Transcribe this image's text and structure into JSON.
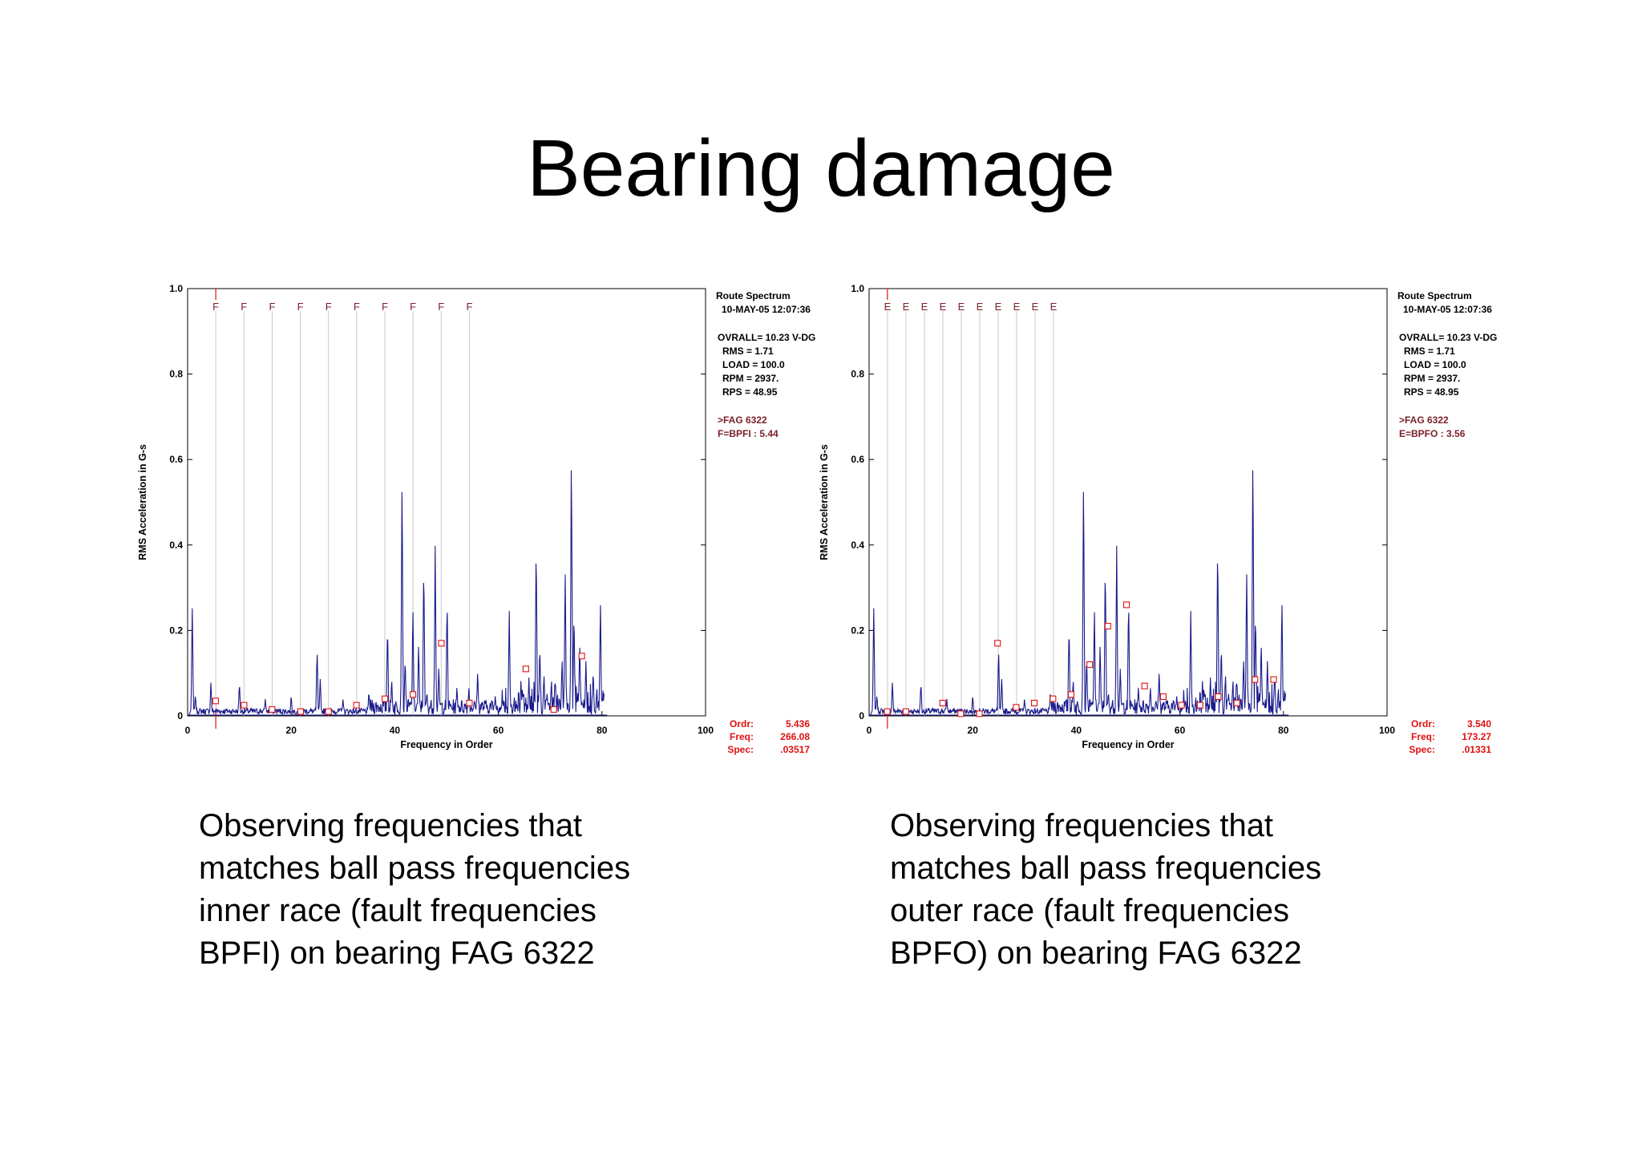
{
  "title": "Bearing damage",
  "colors": {
    "trace": "#1a1a8c",
    "fault": "#7a1f2a",
    "cursor": "#e01010",
    "grid": "#c8c8c8"
  },
  "chart_data": [
    {
      "type": "line",
      "title": "",
      "xlabel": "Frequency in Order",
      "ylabel": "RMS Acceleration in G-s",
      "xlim": [
        0,
        100
      ],
      "ylim": [
        0,
        1.0
      ],
      "xticks": [
        "0",
        "20",
        "40",
        "60",
        "80",
        "100"
      ],
      "yticks": [
        "0",
        "0.2",
        "0.4",
        "0.6",
        "0.8",
        "1.0"
      ],
      "fault_letter": "F",
      "fault_spacing": 5.44,
      "fault_count": 10,
      "cursor_x": 5.436,
      "info": {
        "header1": "Route Spectrum",
        "header2": "10-MAY-05  12:07:36",
        "overall": "OVRALL=  10.23 V-DG",
        "rms": "RMS =  1.71",
        "load": "LOAD = 100.0",
        "rpm": "RPM =  2937.",
        "rps": "RPS =  48.95",
        "bearing": ">FAG 6322",
        "fault_def": "F=BPFI    :  5.44",
        "ordr_label": "Ordr:",
        "ordr_value": "5.436",
        "freq_label": "Freq:",
        "freq_value": "266.08",
        "spec_label": "Spec:",
        "spec_value": ".03517"
      },
      "peaks": [
        [
          0.9,
          0.26
        ],
        [
          1.5,
          0.05
        ],
        [
          4.5,
          0.08
        ],
        [
          10,
          0.08
        ],
        [
          15,
          0.04
        ],
        [
          20,
          0.05
        ],
        [
          25,
          0.16
        ],
        [
          25.6,
          0.09
        ],
        [
          30,
          0.04
        ],
        [
          35,
          0.06
        ],
        [
          38.6,
          0.22
        ],
        [
          39.4,
          0.09
        ],
        [
          41.4,
          0.58
        ],
        [
          42,
          0.14
        ],
        [
          43.5,
          0.26
        ],
        [
          44.6,
          0.17
        ],
        [
          45.6,
          0.37
        ],
        [
          46.2,
          0.06
        ],
        [
          47.8,
          0.4
        ],
        [
          48.5,
          0.12
        ],
        [
          50.1,
          0.28
        ],
        [
          52,
          0.07
        ],
        [
          54.3,
          0.07
        ],
        [
          56,
          0.11
        ],
        [
          59.4,
          0.05
        ],
        [
          62.1,
          0.25
        ],
        [
          64.4,
          0.07
        ],
        [
          65.9,
          0.09
        ],
        [
          67.3,
          0.42
        ],
        [
          68,
          0.17
        ],
        [
          68.8,
          0.1
        ],
        [
          70.2,
          0.07
        ],
        [
          71,
          0.09
        ],
        [
          72.3,
          0.14
        ],
        [
          72.9,
          0.34
        ],
        [
          74.1,
          0.64
        ],
        [
          74.6,
          0.25
        ],
        [
          75.7,
          0.18
        ],
        [
          76.9,
          0.13
        ],
        [
          78.3,
          0.11
        ],
        [
          79.7,
          0.28
        ],
        [
          80.2,
          0.06
        ]
      ],
      "points": [
        [
          5.4,
          0.035
        ],
        [
          10.9,
          0.025
        ],
        [
          16.3,
          0.015
        ],
        [
          21.8,
          0.01
        ],
        [
          27.2,
          0.01
        ],
        [
          32.6,
          0.025
        ],
        [
          38.1,
          0.04
        ],
        [
          43.5,
          0.05
        ],
        [
          49,
          0.17
        ],
        [
          54.4,
          0.03
        ],
        [
          65.3,
          0.11
        ],
        [
          70.7,
          0.015
        ],
        [
          76.1,
          0.14
        ]
      ]
    },
    {
      "type": "line",
      "title": "",
      "xlabel": "Frequency in Order",
      "ylabel": "RMS Acceleration in G-s",
      "xlim": [
        0,
        100
      ],
      "ylim": [
        0,
        1.0
      ],
      "xticks": [
        "0",
        "20",
        "40",
        "60",
        "80",
        "100"
      ],
      "yticks": [
        "0",
        "0.2",
        "0.4",
        "0.6",
        "0.8",
        "1.0"
      ],
      "fault_letter": "E",
      "fault_spacing": 3.56,
      "fault_count": 10,
      "cursor_x": 3.54,
      "info": {
        "header1": "Route Spectrum",
        "header2": "10-MAY-05  12:07:36",
        "overall": "OVRALL=  10.23 V-DG",
        "rms": "RMS =  1.71",
        "load": "LOAD = 100.0",
        "rpm": "RPM =  2937.",
        "rps": "RPS =  48.95",
        "bearing": ">FAG 6322",
        "fault_def": "E=BPFO    :  3.56",
        "ordr_label": "Ordr:",
        "ordr_value": "3.540",
        "freq_label": "Freq:",
        "freq_value": "173.27",
        "spec_label": "Spec:",
        "spec_value": ".01331"
      },
      "peaks": [
        [
          0.9,
          0.26
        ],
        [
          1.5,
          0.05
        ],
        [
          4.5,
          0.08
        ],
        [
          10,
          0.08
        ],
        [
          15,
          0.04
        ],
        [
          20,
          0.05
        ],
        [
          25,
          0.16
        ],
        [
          25.6,
          0.09
        ],
        [
          30,
          0.04
        ],
        [
          35,
          0.06
        ],
        [
          38.6,
          0.22
        ],
        [
          39.4,
          0.09
        ],
        [
          41.4,
          0.58
        ],
        [
          42,
          0.14
        ],
        [
          43.5,
          0.26
        ],
        [
          44.6,
          0.17
        ],
        [
          45.6,
          0.37
        ],
        [
          46.2,
          0.06
        ],
        [
          47.8,
          0.4
        ],
        [
          48.5,
          0.12
        ],
        [
          50.1,
          0.28
        ],
        [
          52,
          0.07
        ],
        [
          54.3,
          0.07
        ],
        [
          56,
          0.11
        ],
        [
          59.4,
          0.05
        ],
        [
          62.1,
          0.25
        ],
        [
          64.4,
          0.07
        ],
        [
          65.9,
          0.09
        ],
        [
          67.3,
          0.42
        ],
        [
          68,
          0.17
        ],
        [
          68.8,
          0.1
        ],
        [
          70.2,
          0.07
        ],
        [
          71,
          0.09
        ],
        [
          72.3,
          0.14
        ],
        [
          72.9,
          0.34
        ],
        [
          74.1,
          0.64
        ],
        [
          74.6,
          0.25
        ],
        [
          75.7,
          0.18
        ],
        [
          76.9,
          0.13
        ],
        [
          78.3,
          0.11
        ],
        [
          79.7,
          0.28
        ],
        [
          80.2,
          0.06
        ]
      ],
      "points": [
        [
          3.5,
          0.01
        ],
        [
          7.1,
          0.01
        ],
        [
          14.2,
          0.03
        ],
        [
          17.7,
          0.005
        ],
        [
          21.3,
          0.005
        ],
        [
          24.8,
          0.17
        ],
        [
          28.4,
          0.02
        ],
        [
          31.9,
          0.03
        ],
        [
          35.5,
          0.04
        ],
        [
          39,
          0.05
        ],
        [
          42.6,
          0.12
        ],
        [
          46.1,
          0.21
        ],
        [
          49.7,
          0.26
        ],
        [
          53.2,
          0.07
        ],
        [
          56.8,
          0.045
        ],
        [
          60.3,
          0.025
        ],
        [
          63.9,
          0.025
        ],
        [
          67.4,
          0.045
        ],
        [
          71,
          0.03
        ],
        [
          74.5,
          0.085
        ],
        [
          78.1,
          0.085
        ]
      ]
    }
  ],
  "captions": [
    {
      "lines": [
        "Observing frequencies that",
        "matches ball pass frequencies",
        "inner race (fault frequencies",
        "BPFI) on bearing FAG 6322"
      ]
    },
    {
      "lines": [
        "Observing frequencies that",
        "matches ball pass frequencies",
        "outer race (fault frequencies",
        "BPFO) on bearing FAG 6322"
      ]
    }
  ]
}
